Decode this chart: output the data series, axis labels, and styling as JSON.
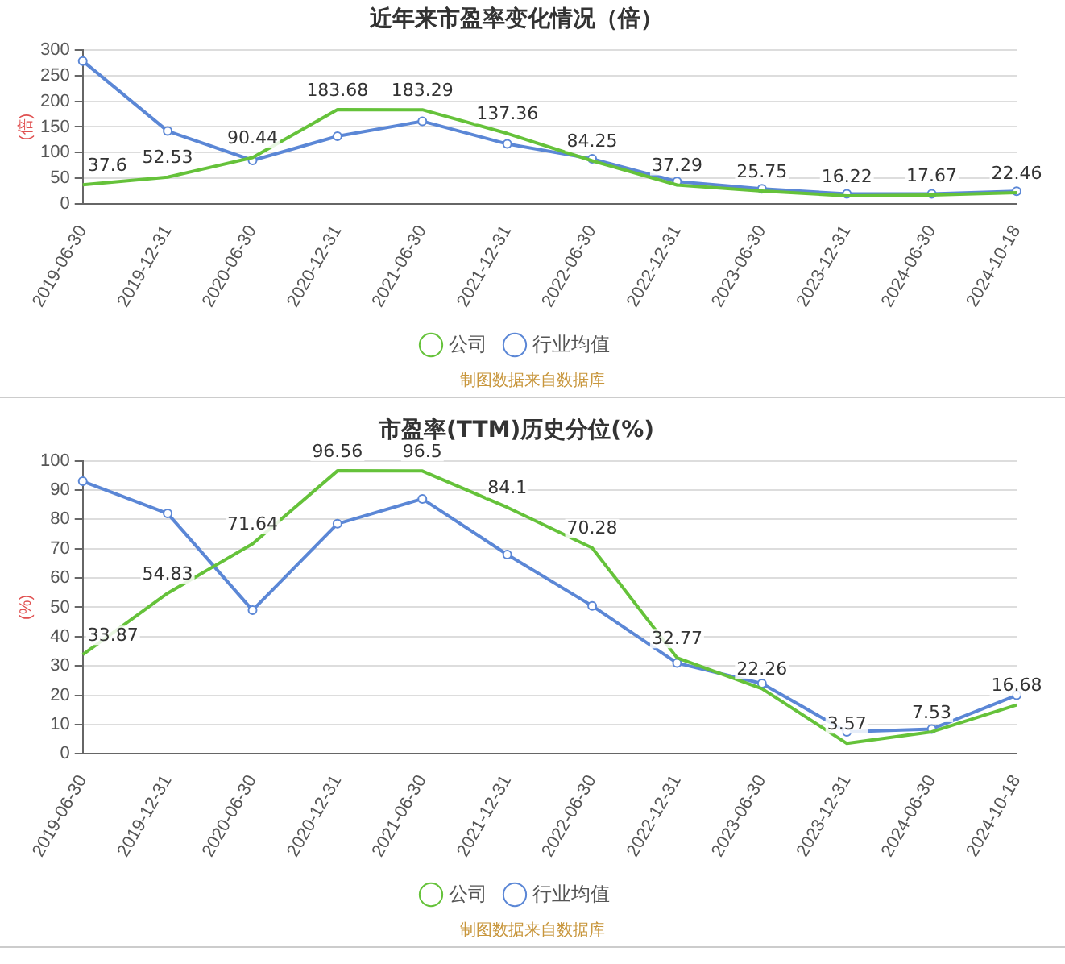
{
  "chart_data": [
    {
      "type": "line",
      "title": "近年来市盈率变化情况（倍）",
      "ylabel": "(倍)",
      "categories": [
        "2019-06-30",
        "2019-12-31",
        "2020-06-30",
        "2020-12-31",
        "2021-06-30",
        "2021-12-31",
        "2022-06-30",
        "2022-12-31",
        "2023-06-30",
        "2023-12-31",
        "2024-06-30",
        "2024-10-18"
      ],
      "series": [
        {
          "name": "公司",
          "color": "#65c23a",
          "marker": "none",
          "values": [
            37.6,
            52.53,
            90.44,
            183.68,
            183.29,
            137.36,
            84.25,
            37.29,
            25.75,
            16.22,
            17.67,
            22.46
          ],
          "value_labels": [
            "37.6",
            "52.53",
            "90.44",
            "183.68",
            "183.29",
            "137.36",
            "84.25",
            "37.29",
            "25.75",
            "16.22",
            "17.67",
            "22.46"
          ]
        },
        {
          "name": "行业均值",
          "color": "#5b87d6",
          "marker": "circle",
          "values": [
            278,
            142,
            85,
            132,
            161,
            117,
            88,
            44,
            30,
            20,
            20,
            25
          ]
        }
      ],
      "ylim": [
        0,
        300
      ],
      "yticks": [
        0,
        50,
        100,
        150,
        200,
        250,
        300
      ],
      "grid": "y",
      "legend": "bottom",
      "line_style": "solid",
      "annotations": [
        "制图数据来自数据库"
      ]
    },
    {
      "type": "line",
      "title": "市盈率(TTM)历史分位(%)",
      "ylabel": "(%)",
      "categories": [
        "2019-06-30",
        "2019-12-31",
        "2020-06-30",
        "2020-12-31",
        "2021-06-30",
        "2021-12-31",
        "2022-06-30",
        "2022-12-31",
        "2023-06-30",
        "2023-12-31",
        "2024-06-30",
        "2024-10-18"
      ],
      "series": [
        {
          "name": "公司",
          "color": "#65c23a",
          "marker": "none",
          "values": [
            33.87,
            54.83,
            71.64,
            96.56,
            96.5,
            84.1,
            70.28,
            32.77,
            22.26,
            3.57,
            7.53,
            16.68
          ],
          "value_labels": [
            "33.87",
            "54.83",
            "71.64",
            "96.56",
            "96.5",
            "84.1",
            "70.28",
            "32.77",
            "22.26",
            "3.57",
            "7.53",
            "16.68"
          ]
        },
        {
          "name": "行业均值",
          "color": "#5b87d6",
          "marker": "circle",
          "values": [
            93,
            82,
            49,
            78.5,
            87,
            68,
            50.5,
            31,
            24,
            7.5,
            8.5,
            20
          ]
        }
      ],
      "ylim": [
        0,
        100
      ],
      "yticks": [
        0,
        10,
        20,
        30,
        40,
        50,
        60,
        70,
        80,
        90,
        100
      ],
      "grid": "y",
      "legend": "bottom",
      "line_style": "solid",
      "annotations": [
        "制图数据来自数据库"
      ]
    }
  ]
}
